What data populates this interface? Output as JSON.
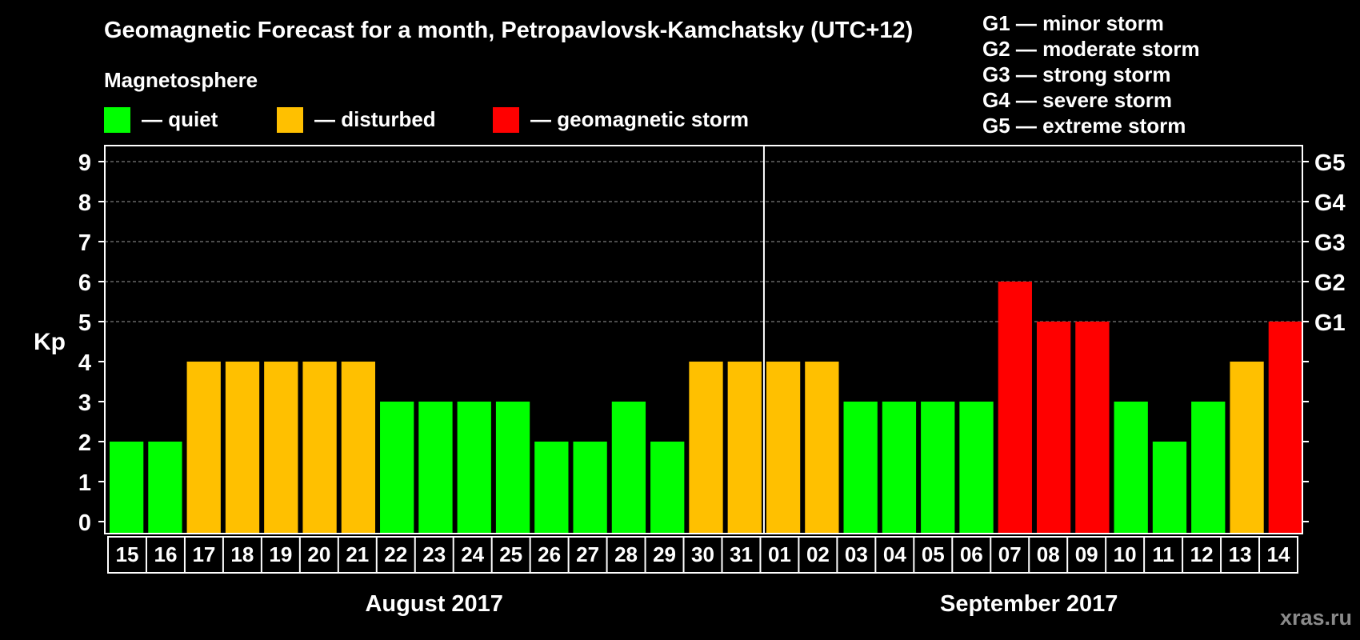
{
  "chart_data": {
    "type": "bar",
    "title": "Geomagnetic Forecast for a month, Petropavlovsk-Kamchatsky (UTC+12)",
    "legend_title": "Magnetosphere",
    "legend_placement": "top-left",
    "legend": [
      {
        "key": "quiet",
        "label": "— quiet",
        "color": "#00ff00"
      },
      {
        "key": "disturbed",
        "label": "— disturbed",
        "color": "#ffc000"
      },
      {
        "key": "storm",
        "label": "— geomagnetic storm",
        "color": "#ff0000"
      }
    ],
    "storm_scale": [
      "G1 — minor storm",
      "G2 — moderate storm",
      "G3 — strong storm",
      "G4 — severe storm",
      "G5 — extreme storm"
    ],
    "ylabel": "Kp",
    "ylim": [
      0,
      9
    ],
    "yticks": [
      "0",
      "1",
      "2",
      "3",
      "4",
      "5",
      "6",
      "7",
      "8",
      "9"
    ],
    "right_ticks": [
      {
        "value": 5,
        "label": "G1"
      },
      {
        "value": 6,
        "label": "G2"
      },
      {
        "value": 7,
        "label": "G3"
      },
      {
        "value": 8,
        "label": "G4"
      },
      {
        "value": 9,
        "label": "G5"
      }
    ],
    "grid": true,
    "categories": [
      "15",
      "16",
      "17",
      "18",
      "19",
      "20",
      "21",
      "22",
      "23",
      "24",
      "25",
      "26",
      "27",
      "28",
      "29",
      "30",
      "31",
      "01",
      "02",
      "03",
      "04",
      "05",
      "06",
      "07",
      "08",
      "09",
      "10",
      "11",
      "12",
      "13",
      "14"
    ],
    "values": [
      2,
      2,
      4,
      4,
      4,
      4,
      4,
      3,
      3,
      3,
      3,
      2,
      2,
      3,
      2,
      4,
      4,
      4,
      4,
      3,
      3,
      3,
      3,
      6,
      5,
      5,
      3,
      2,
      3,
      4,
      5
    ],
    "months": [
      {
        "label": "August 2017",
        "start": 0,
        "count": 17
      },
      {
        "label": "September 2017",
        "start": 17,
        "count": 14
      }
    ],
    "watermark": "xras.ru"
  }
}
